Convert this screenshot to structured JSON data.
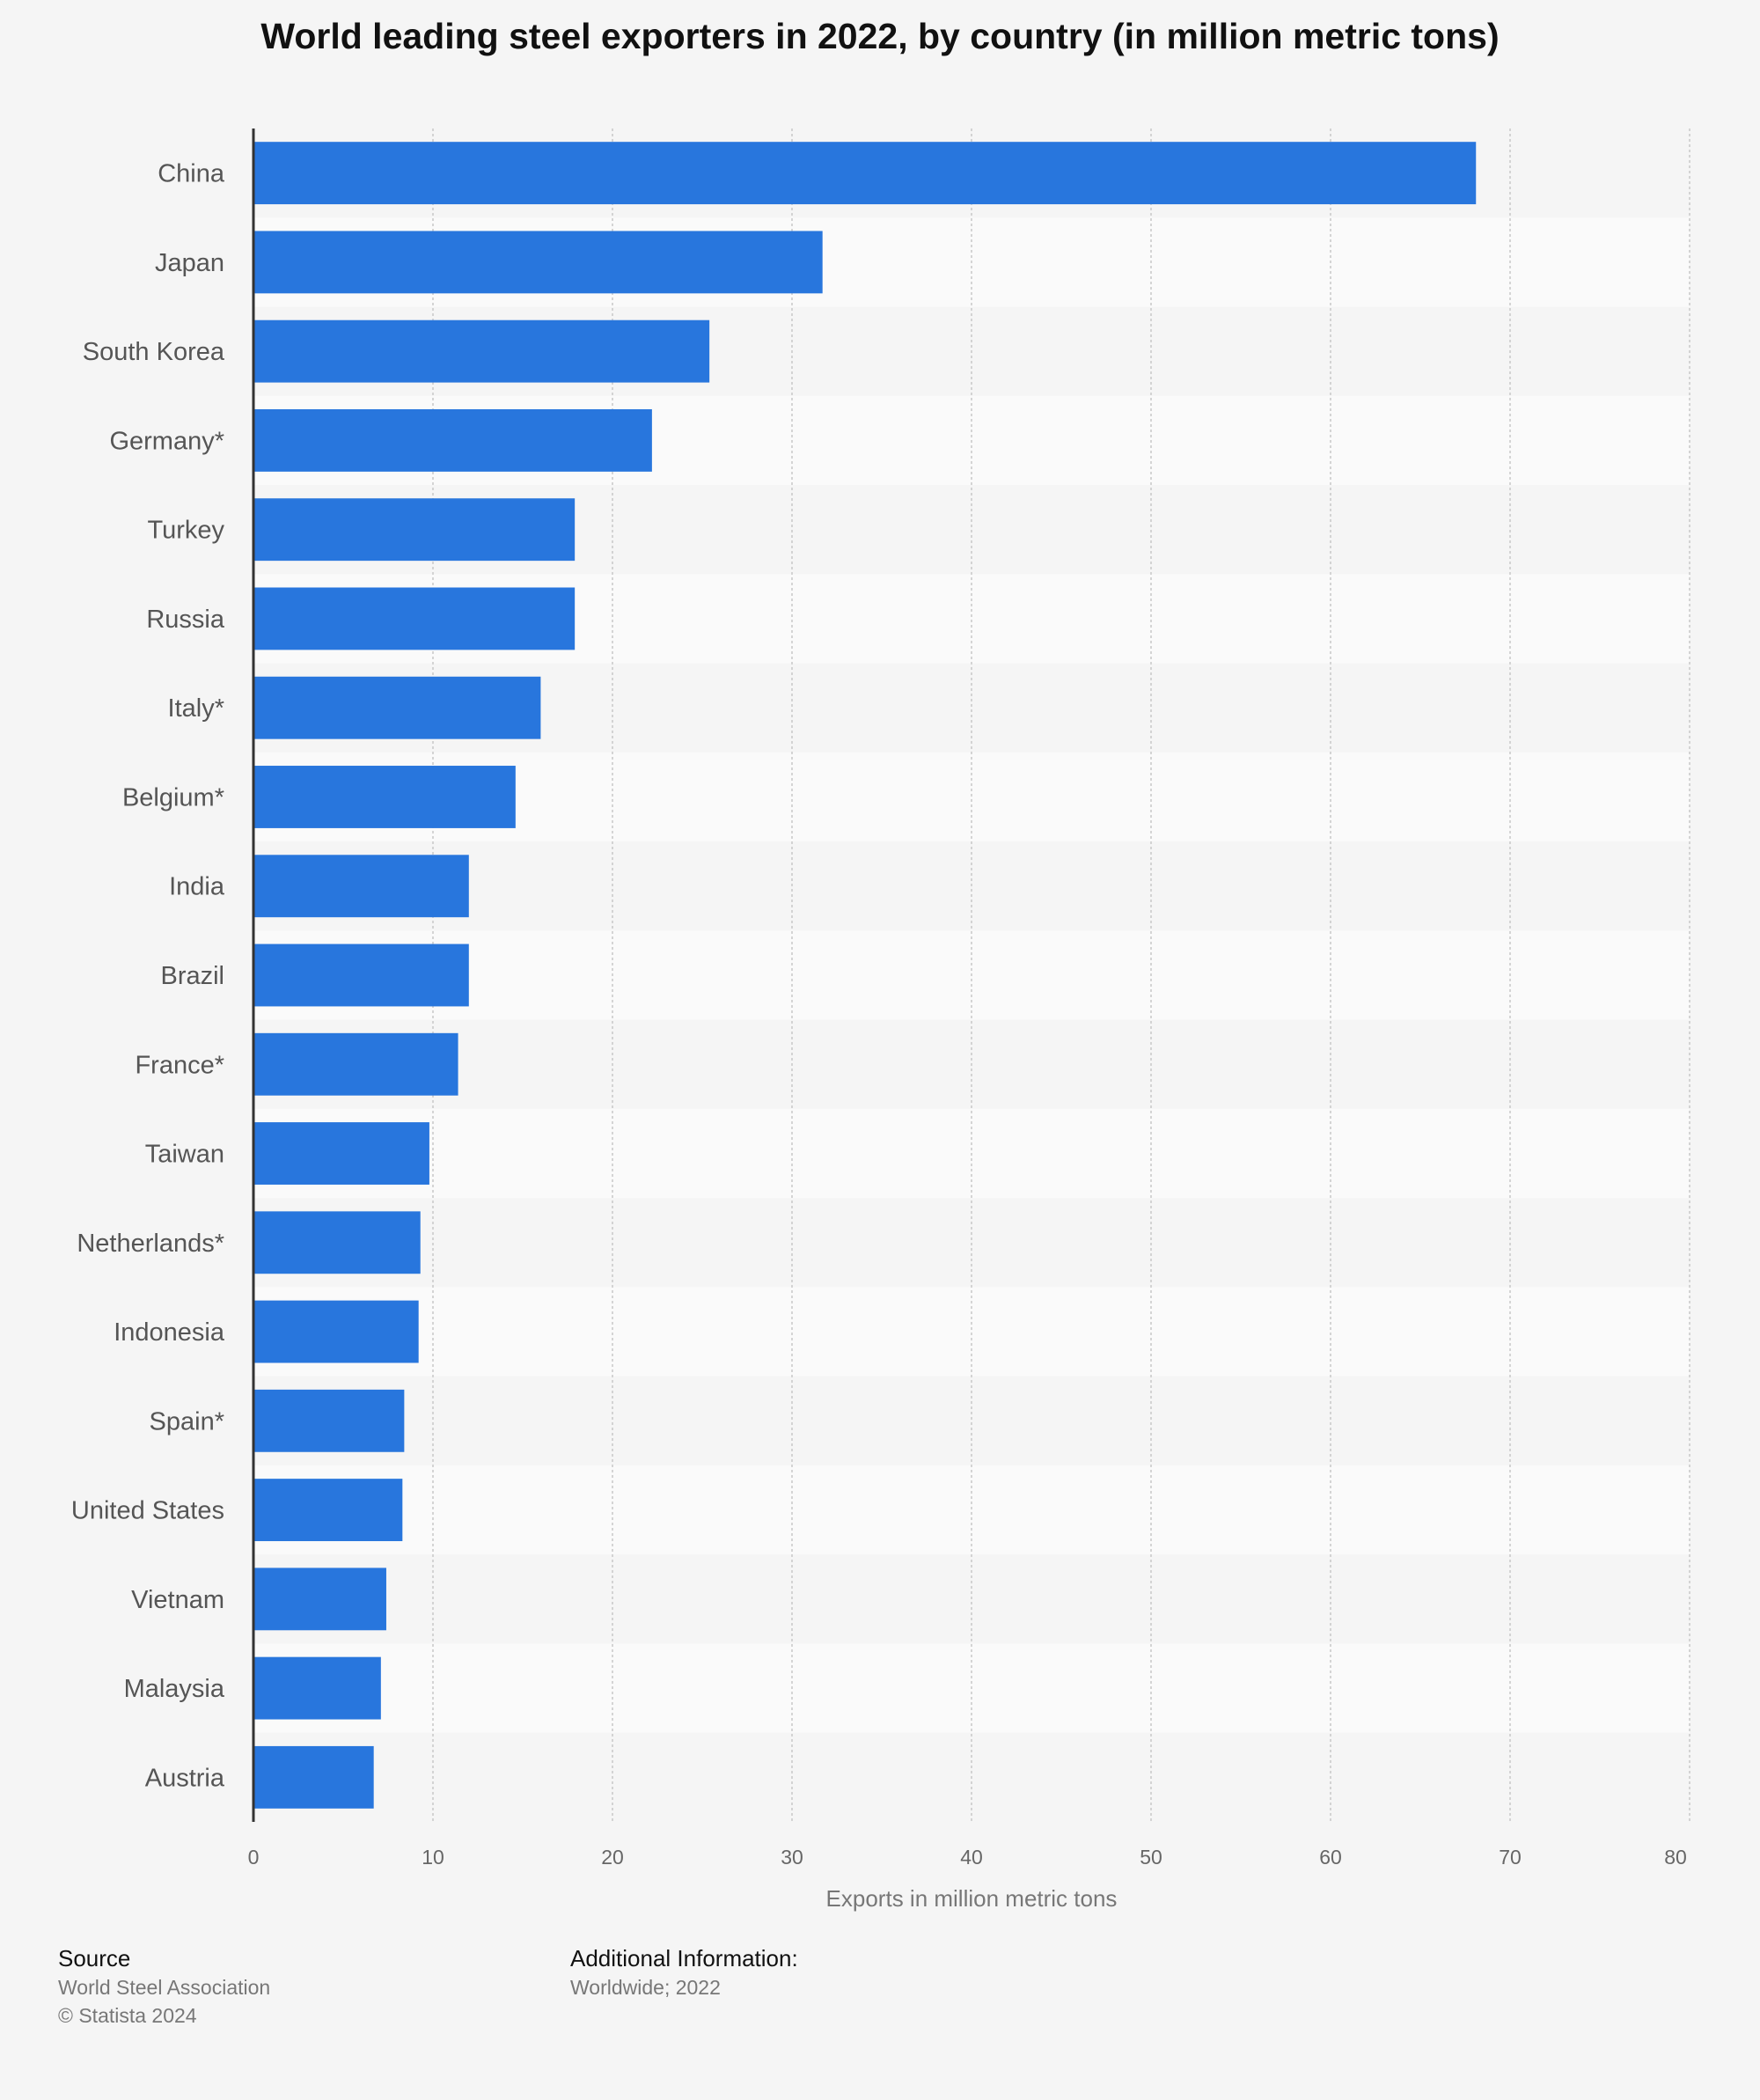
{
  "chart_data": {
    "type": "bar",
    "orientation": "horizontal",
    "title": "World leading steel exporters in 2022, by country (in million metric tons)",
    "categories": [
      "China",
      "Japan",
      "South Korea",
      "Germany*",
      "Turkey",
      "Russia",
      "Italy*",
      "Belgium*",
      "India",
      "Brazil",
      "France*",
      "Taiwan",
      "Netherlands*",
      "Indonesia",
      "Spain*",
      "United States",
      "Vietnam",
      "Malaysia",
      "Austria"
    ],
    "values": [
      68.1,
      31.7,
      25.4,
      22.2,
      17.9,
      17.9,
      16.0,
      14.6,
      12.0,
      12.0,
      11.4,
      9.8,
      9.3,
      9.2,
      8.4,
      8.3,
      7.4,
      7.1,
      6.7
    ],
    "xlabel": "Exports in million metric tons",
    "ylabel": "",
    "xlim": [
      0,
      80
    ],
    "ticks": [
      "0",
      "10",
      "20",
      "30",
      "40",
      "50",
      "60",
      "70",
      "80"
    ],
    "grid": true,
    "bar_color": "#2876dd"
  },
  "footer": {
    "source_heading": "Source",
    "source_name": "World Steel Association",
    "copyright": "© Statista 2024",
    "info_heading": "Additional Information:",
    "info_text": "Worldwide; 2022"
  }
}
